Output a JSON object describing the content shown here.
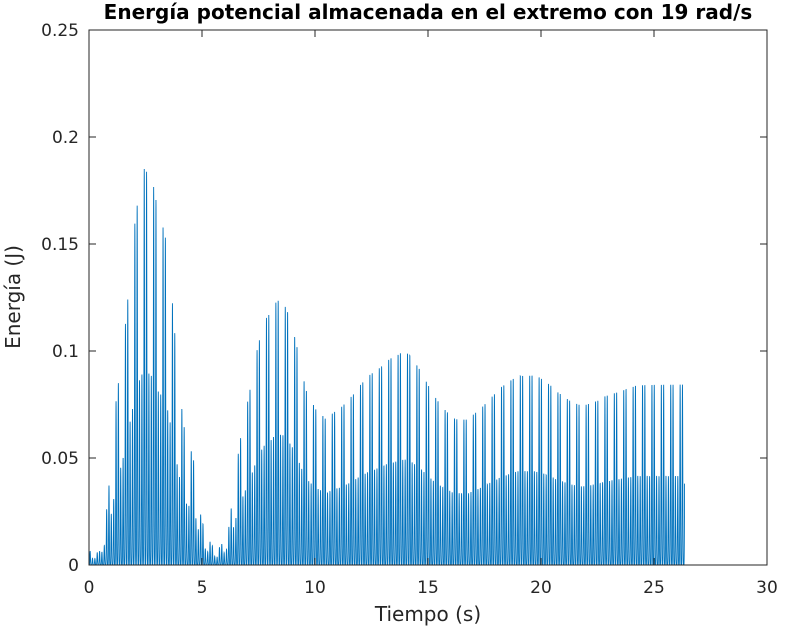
{
  "chart_data": {
    "type": "line",
    "title": "Energía potencial almacenada en el extremo con 19 rad/s",
    "xlabel": "Tiempo (s)",
    "ylabel": "Energía (J)",
    "xlim": [
      0,
      30
    ],
    "ylim": [
      0,
      0.25
    ],
    "xticks": [
      0,
      5,
      10,
      15,
      20,
      25,
      30
    ],
    "yticks": [
      0,
      0.05,
      0.1,
      0.15,
      0.2,
      0.25
    ],
    "xtick_labels": [
      "0",
      "5",
      "10",
      "15",
      "20",
      "25",
      "30"
    ],
    "ytick_labels": [
      "0",
      "0.05",
      "0.1",
      "0.15",
      "0.2",
      "0.25"
    ],
    "grid": false,
    "series_color": "#0072BD",
    "series": [
      {
        "x": [
          0.2,
          0.45,
          0.75,
          1.0,
          1.22,
          1.45,
          1.66,
          1.86,
          2.06,
          2.26,
          2.46,
          2.66,
          2.86,
          3.06,
          3.26,
          3.46,
          3.66,
          3.86,
          4.06,
          4.28,
          4.5,
          4.72,
          4.95,
          5.2,
          5.45,
          5.7,
          5.95,
          6.2,
          6.45,
          6.7,
          6.95,
          7.2,
          7.42,
          7.62,
          7.82,
          8.02,
          8.22,
          8.42,
          8.62,
          8.82,
          9.02,
          9.22,
          9.42,
          9.62,
          9.84,
          10.06,
          10.28,
          10.5,
          10.74,
          10.98,
          11.22,
          11.46,
          11.7,
          11.94,
          12.18,
          12.42,
          12.66,
          12.9,
          13.14,
          13.38,
          13.6,
          13.82,
          14.04,
          14.26,
          14.48,
          14.7,
          14.92,
          15.14,
          15.36,
          15.6,
          15.84,
          16.08,
          16.32,
          16.56,
          16.8,
          17.04,
          17.28,
          17.52,
          17.76,
          18.0,
          18.24,
          18.48,
          18.72,
          18.96,
          19.2,
          19.44,
          19.68,
          19.92,
          20.16,
          20.4,
          20.64,
          20.88,
          21.12,
          21.36,
          21.6,
          21.84,
          22.08,
          22.32,
          22.56,
          22.8,
          23.04,
          23.28,
          23.52,
          23.76,
          24.0,
          24.24,
          24.48,
          24.72,
          24.96,
          25.2,
          25.44,
          25.68,
          25.92,
          26.16,
          26.35
        ],
        "y": [
          0.007,
          0.006,
          0.025,
          0.055,
          0.088,
          0.105,
          0.13,
          0.155,
          0.18,
          0.195,
          0.205,
          0.2,
          0.195,
          0.182,
          0.175,
          0.165,
          0.14,
          0.11,
          0.085,
          0.065,
          0.06,
          0.05,
          0.025,
          0.015,
          0.01,
          0.008,
          0.012,
          0.02,
          0.045,
          0.065,
          0.08,
          0.095,
          0.11,
          0.12,
          0.127,
          0.13,
          0.135,
          0.137,
          0.135,
          0.13,
          0.122,
          0.112,
          0.1,
          0.09,
          0.085,
          0.08,
          0.078,
          0.075,
          0.078,
          0.08,
          0.082,
          0.085,
          0.088,
          0.092,
          0.095,
          0.098,
          0.1,
          0.102,
          0.105,
          0.107,
          0.108,
          0.11,
          0.11,
          0.108,
          0.104,
          0.1,
          0.095,
          0.09,
          0.086,
          0.082,
          0.079,
          0.076,
          0.075,
          0.075,
          0.075,
          0.078,
          0.08,
          0.083,
          0.086,
          0.089,
          0.092,
          0.094,
          0.096,
          0.098,
          0.098,
          0.098,
          0.098,
          0.097,
          0.095,
          0.093,
          0.09,
          0.088,
          0.086,
          0.084,
          0.083,
          0.082,
          0.083,
          0.084,
          0.085,
          0.087,
          0.088,
          0.089,
          0.09,
          0.091,
          0.092,
          0.093,
          0.093,
          0.093,
          0.093,
          0.093,
          0.093,
          0.093,
          0.093,
          0.093,
          0.093
        ]
      }
    ]
  }
}
